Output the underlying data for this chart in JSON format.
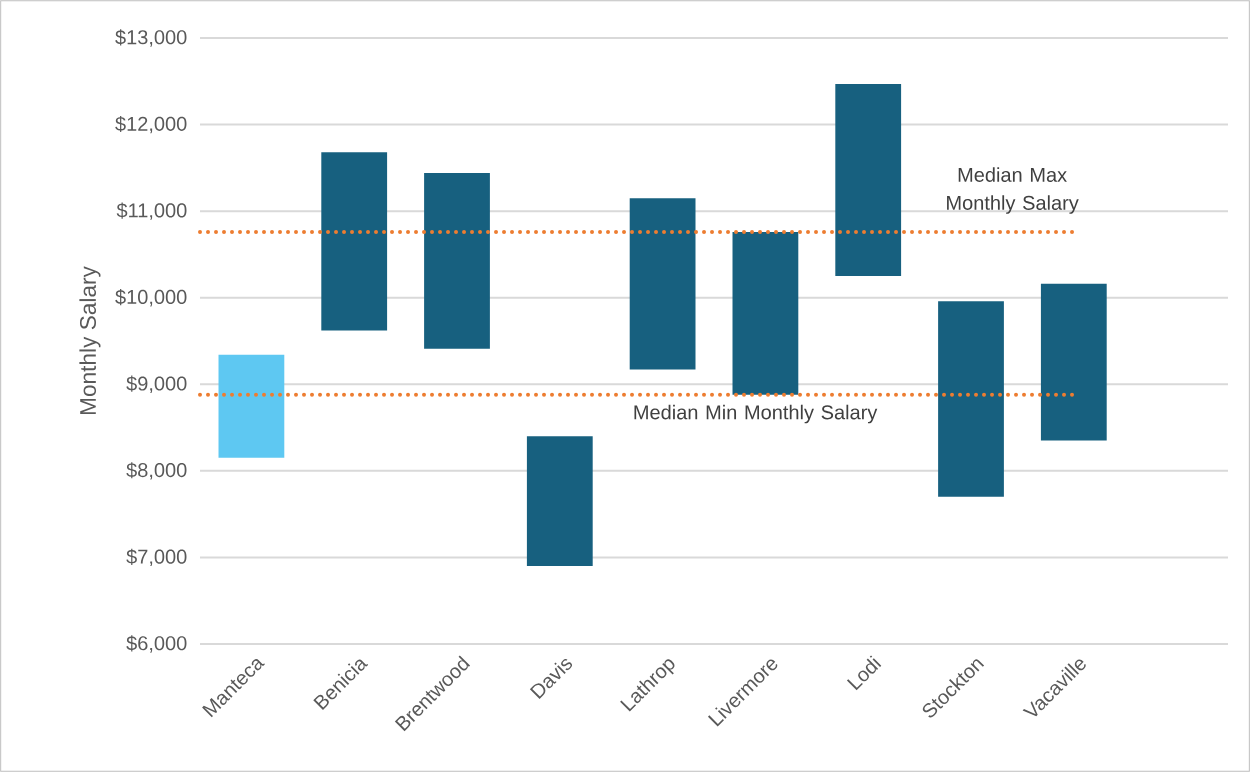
{
  "chart_data": {
    "type": "bar",
    "ylabel": "Monthly Salary",
    "categories": [
      "Manteca",
      "Benicia",
      "Brentwood",
      "Davis",
      "Lathrop",
      "Livermore",
      "Lodi",
      "Stockton",
      "Vacaville",
      null
    ],
    "base": [
      8150,
      9620,
      9410,
      6900,
      9170,
      8880,
      10250,
      7700,
      8350,
      null
    ],
    "values": [
      1190,
      2060,
      2030,
      1500,
      1980,
      1880,
      2220,
      2260,
      1810,
      null
    ],
    "colors": [
      "#5ec8f2",
      "#17607f",
      "#17607f",
      "#17607f",
      "#17607f",
      "#17607f",
      "#17607f",
      "#17607f",
      "#17607f",
      null
    ],
    "ylim": [
      6000,
      13000
    ],
    "yticks": [
      {
        "value": 6000,
        "label": "$6,000"
      },
      {
        "value": 7000,
        "label": "$7,000"
      },
      {
        "value": 8000,
        "label": "$8,000"
      },
      {
        "value": 9000,
        "label": "$9,000"
      },
      {
        "value": 10000,
        "label": "$10,000"
      },
      {
        "value": 11000,
        "label": "$11,000"
      },
      {
        "value": 12000,
        "label": "$12,000"
      },
      {
        "value": 13000,
        "label": "$13,000"
      }
    ],
    "grid": "y",
    "ref_lines": [
      {
        "axis": "y",
        "value": 10760,
        "label": "Median Max Monthly Salary",
        "color": "#ed7d31",
        "line_style": "dotted"
      },
      {
        "axis": "y",
        "value": 8880,
        "label": "Median Min Monthly Salary",
        "color": "#ed7d31",
        "line_style": "dotted"
      }
    ]
  }
}
